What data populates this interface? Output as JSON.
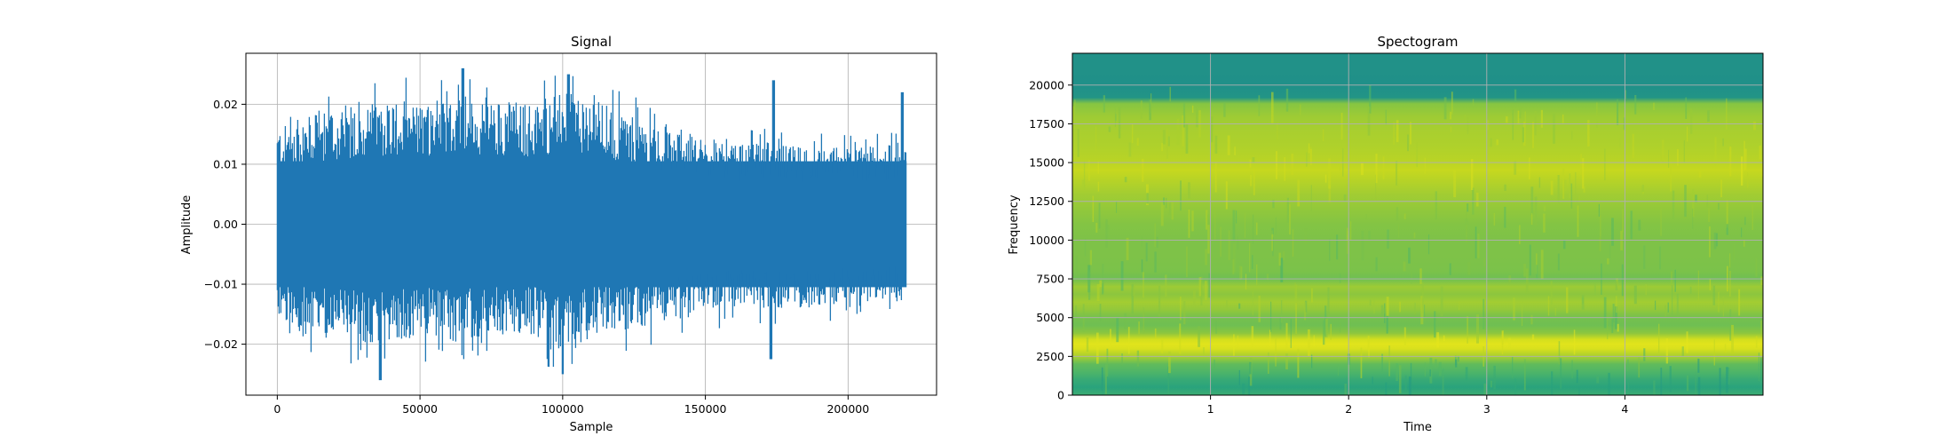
{
  "chart_data": [
    {
      "type": "line",
      "title": "Signal",
      "xlabel": "Sample",
      "ylabel": "Amplitude",
      "xlim": [
        -11000,
        231000
      ],
      "ylim": [
        -0.0285,
        0.0285
      ],
      "xticks": [
        0,
        50000,
        100000,
        150000,
        200000
      ],
      "xtick_labels": [
        "0",
        "50000",
        "100000",
        "150000",
        "200000"
      ],
      "yticks": [
        -0.02,
        -0.01,
        0.0,
        0.01,
        0.02
      ],
      "ytick_labels": [
        "−0.02",
        "−0.01",
        "0.00",
        "0.01",
        "0.02"
      ],
      "grid": true,
      "line_color": "#1f77b4",
      "n_samples": 220500,
      "series": [
        {
          "x": [
            0,
            10000,
            20000,
            30000,
            40000,
            50000,
            60000,
            70000,
            80000,
            90000,
            100000,
            110000,
            120000,
            130000,
            140000,
            150000,
            160000,
            170000,
            180000,
            190000,
            200000,
            210000,
            220000
          ],
          "upper": [
            0.016,
            0.018,
            0.019,
            0.02,
            0.021,
            0.02,
            0.022,
            0.02,
            0.021,
            0.02,
            0.022,
            0.021,
            0.019,
            0.017,
            0.016,
            0.014,
            0.013,
            0.014,
            0.013,
            0.013,
            0.013,
            0.013,
            0.014
          ],
          "lower": [
            -0.016,
            -0.019,
            -0.019,
            -0.02,
            -0.02,
            -0.019,
            -0.02,
            -0.019,
            -0.019,
            -0.019,
            -0.021,
            -0.019,
            -0.018,
            -0.017,
            -0.016,
            -0.015,
            -0.014,
            -0.014,
            -0.014,
            -0.014,
            -0.013,
            -0.013,
            -0.013
          ]
        }
      ],
      "peaks": [
        {
          "x": 65000,
          "y": 0.026
        },
        {
          "x": 102000,
          "y": 0.025
        },
        {
          "x": 174000,
          "y": 0.024
        },
        {
          "x": 219000,
          "y": 0.022
        },
        {
          "x": 36000,
          "y": -0.026
        },
        {
          "x": 100000,
          "y": -0.025
        },
        {
          "x": 173000,
          "y": -0.0225
        }
      ]
    },
    {
      "type": "heatmap",
      "title": "Spectogram",
      "xlabel": "Time",
      "ylabel": "Frequency",
      "xlim": [
        0.0,
        5.0
      ],
      "ylim": [
        0,
        22050
      ],
      "xticks": [
        1,
        2,
        3,
        4
      ],
      "xtick_labels": [
        "1",
        "2",
        "3",
        "4"
      ],
      "yticks": [
        0,
        2500,
        5000,
        7500,
        10000,
        12500,
        15000,
        17500,
        20000
      ],
      "ytick_labels": [
        "0",
        "2500",
        "5000",
        "7500",
        "10000",
        "12500",
        "15000",
        "17500",
        "20000"
      ],
      "grid": true,
      "colormap": [
        "#1f8c8b",
        "#26a17f",
        "#52b765",
        "#8cc63e",
        "#c6d81f",
        "#e6e61c"
      ],
      "frequency_profile": {
        "freq": [
          0,
          500,
          1000,
          1500,
          2000,
          2500,
          3000,
          3300,
          3600,
          4000,
          4500,
          5000,
          5500,
          6000,
          6500,
          7000,
          7500,
          8000,
          9000,
          10000,
          11000,
          12000,
          13000,
          14000,
          14500,
          15000,
          16000,
          17000,
          18000,
          18800,
          19200,
          20000,
          21000,
          22050
        ],
        "level": [
          0.3,
          0.22,
          0.28,
          0.38,
          0.45,
          0.7,
          0.92,
          0.97,
          0.88,
          0.6,
          0.5,
          0.52,
          0.62,
          0.68,
          0.6,
          0.66,
          0.5,
          0.54,
          0.55,
          0.55,
          0.57,
          0.62,
          0.68,
          0.76,
          0.8,
          0.76,
          0.72,
          0.7,
          0.66,
          0.58,
          0.08,
          0.04,
          0.05,
          0.05
        ]
      }
    }
  ]
}
